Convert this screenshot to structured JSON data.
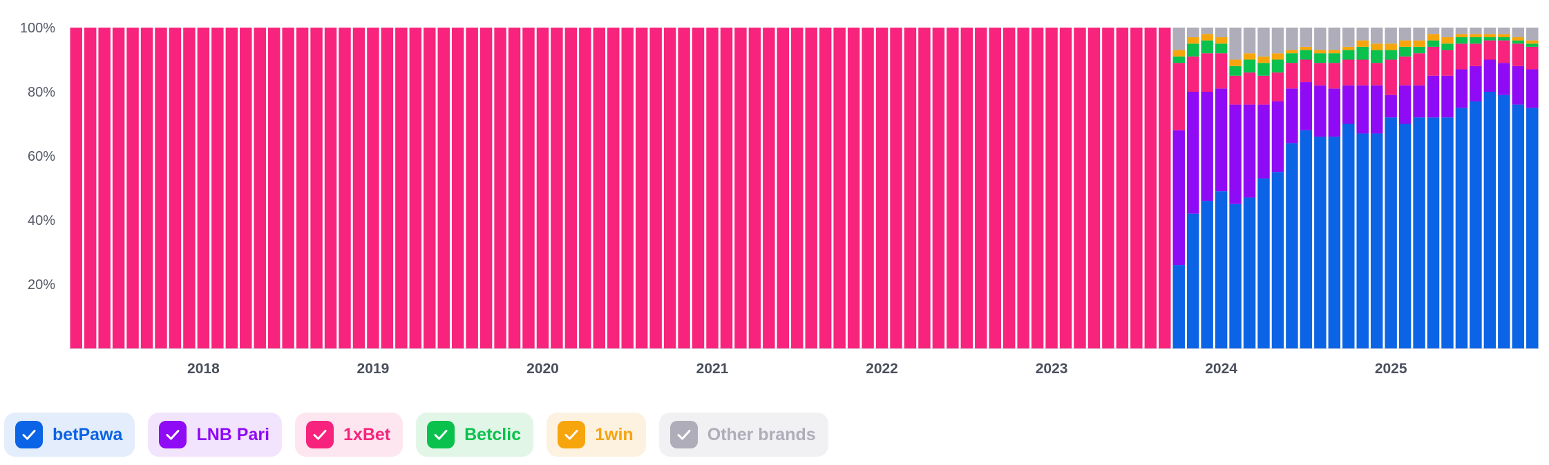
{
  "chart_data": {
    "type": "bar",
    "stacked": true,
    "normalized": true,
    "ylim": [
      0,
      100
    ],
    "yticks": [
      "20%",
      "40%",
      "60%",
      "80%",
      "100%"
    ],
    "ytick_values": [
      20,
      40,
      60,
      80,
      100
    ],
    "x_start": "2017-09",
    "x_end": "2025-05",
    "x_interval": "month",
    "year_labels": [
      "2018",
      "2019",
      "2020",
      "2021",
      "2022",
      "2023",
      "2024",
      "2025"
    ],
    "series": [
      {
        "name": "betPawa",
        "color": "#0b63e5",
        "values": [
          0,
          0,
          0,
          0,
          0,
          0,
          0,
          0,
          0,
          0,
          0,
          0,
          0,
          0,
          0,
          0,
          0,
          0,
          0,
          0,
          0,
          0,
          0,
          0,
          0,
          0,
          0,
          0,
          0,
          0,
          0,
          0,
          0,
          0,
          0,
          0,
          0,
          0,
          0,
          0,
          0,
          0,
          0,
          0,
          0,
          0,
          0,
          0,
          0,
          0,
          0,
          0,
          0,
          0,
          0,
          0,
          0,
          0,
          0,
          0,
          0,
          0,
          0,
          0,
          0,
          0,
          0,
          0,
          0,
          0,
          0,
          0,
          0,
          0,
          0,
          0,
          0,
          0,
          26,
          42,
          46,
          49,
          45,
          47,
          53,
          55,
          64,
          68,
          66,
          66,
          70,
          67,
          67,
          72,
          70,
          72,
          72,
          72,
          75,
          77,
          80,
          79,
          76,
          75
        ]
      },
      {
        "name": "LNB Pari",
        "color": "#8f0af5",
        "values": [
          0,
          0,
          0,
          0,
          0,
          0,
          0,
          0,
          0,
          0,
          0,
          0,
          0,
          0,
          0,
          0,
          0,
          0,
          0,
          0,
          0,
          0,
          0,
          0,
          0,
          0,
          0,
          0,
          0,
          0,
          0,
          0,
          0,
          0,
          0,
          0,
          0,
          0,
          0,
          0,
          0,
          0,
          0,
          0,
          0,
          0,
          0,
          0,
          0,
          0,
          0,
          0,
          0,
          0,
          0,
          0,
          0,
          0,
          0,
          0,
          0,
          0,
          0,
          0,
          0,
          0,
          0,
          0,
          0,
          0,
          0,
          0,
          0,
          0,
          0,
          0,
          0,
          0,
          42,
          38,
          34,
          32,
          31,
          29,
          23,
          22,
          17,
          15,
          16,
          15,
          12,
          15,
          15,
          7,
          12,
          10,
          13,
          13,
          12,
          11,
          10,
          10,
          12,
          12
        ]
      },
      {
        "name": "1xBet",
        "color": "#f7237d",
        "values": [
          100,
          100,
          100,
          100,
          100,
          100,
          100,
          100,
          100,
          100,
          100,
          100,
          100,
          100,
          100,
          100,
          100,
          100,
          100,
          100,
          100,
          100,
          100,
          100,
          100,
          100,
          100,
          100,
          100,
          100,
          100,
          100,
          100,
          100,
          100,
          100,
          100,
          100,
          100,
          100,
          100,
          100,
          100,
          100,
          100,
          100,
          100,
          100,
          100,
          100,
          100,
          100,
          100,
          100,
          100,
          100,
          100,
          100,
          100,
          100,
          100,
          100,
          100,
          100,
          100,
          100,
          100,
          100,
          100,
          100,
          100,
          100,
          100,
          100,
          100,
          100,
          100,
          100,
          21,
          11,
          12,
          11,
          9,
          10,
          9,
          9,
          8,
          7,
          7,
          8,
          8,
          8,
          7,
          11,
          9,
          10,
          9,
          8,
          8,
          7,
          6,
          7,
          7,
          7
        ]
      },
      {
        "name": "Betclic",
        "color": "#0ac14d",
        "values": [
          0,
          0,
          0,
          0,
          0,
          0,
          0,
          0,
          0,
          0,
          0,
          0,
          0,
          0,
          0,
          0,
          0,
          0,
          0,
          0,
          0,
          0,
          0,
          0,
          0,
          0,
          0,
          0,
          0,
          0,
          0,
          0,
          0,
          0,
          0,
          0,
          0,
          0,
          0,
          0,
          0,
          0,
          0,
          0,
          0,
          0,
          0,
          0,
          0,
          0,
          0,
          0,
          0,
          0,
          0,
          0,
          0,
          0,
          0,
          0,
          0,
          0,
          0,
          0,
          0,
          0,
          0,
          0,
          0,
          0,
          0,
          0,
          0,
          0,
          0,
          0,
          0,
          0,
          2,
          4,
          4,
          3,
          3,
          4,
          4,
          4,
          3,
          3,
          3,
          3,
          3,
          4,
          4,
          3,
          3,
          2,
          2,
          2,
          2,
          2,
          1,
          1,
          1,
          1
        ]
      },
      {
        "name": "1win",
        "color": "#f7a50d",
        "values": [
          0,
          0,
          0,
          0,
          0,
          0,
          0,
          0,
          0,
          0,
          0,
          0,
          0,
          0,
          0,
          0,
          0,
          0,
          0,
          0,
          0,
          0,
          0,
          0,
          0,
          0,
          0,
          0,
          0,
          0,
          0,
          0,
          0,
          0,
          0,
          0,
          0,
          0,
          0,
          0,
          0,
          0,
          0,
          0,
          0,
          0,
          0,
          0,
          0,
          0,
          0,
          0,
          0,
          0,
          0,
          0,
          0,
          0,
          0,
          0,
          0,
          0,
          0,
          0,
          0,
          0,
          0,
          0,
          0,
          0,
          0,
          0,
          0,
          0,
          0,
          0,
          0,
          0,
          2,
          2,
          2,
          2,
          2,
          2,
          2,
          2,
          1,
          1,
          1,
          1,
          1,
          2,
          2,
          2,
          2,
          2,
          2,
          2,
          1,
          1,
          1,
          1,
          1,
          1
        ]
      },
      {
        "name": "Other brands",
        "color": "#aeadb9",
        "values": [
          0,
          0,
          0,
          0,
          0,
          0,
          0,
          0,
          0,
          0,
          0,
          0,
          0,
          0,
          0,
          0,
          0,
          0,
          0,
          0,
          0,
          0,
          0,
          0,
          0,
          0,
          0,
          0,
          0,
          0,
          0,
          0,
          0,
          0,
          0,
          0,
          0,
          0,
          0,
          0,
          0,
          0,
          0,
          0,
          0,
          0,
          0,
          0,
          0,
          0,
          0,
          0,
          0,
          0,
          0,
          0,
          0,
          0,
          0,
          0,
          0,
          0,
          0,
          0,
          0,
          0,
          0,
          0,
          0,
          0,
          0,
          0,
          0,
          0,
          0,
          0,
          0,
          0,
          7,
          3,
          2,
          3,
          10,
          8,
          9,
          8,
          7,
          6,
          7,
          7,
          6,
          4,
          5,
          5,
          4,
          4,
          2,
          3,
          2,
          2,
          2,
          2,
          3,
          4
        ]
      }
    ]
  },
  "legend": [
    {
      "name": "betPawa",
      "color": "#0b63e5",
      "bg": "#e3edfb",
      "checked": true
    },
    {
      "name": "LNB Pari",
      "color": "#8f0af5",
      "bg": "#f2e4fd",
      "checked": true
    },
    {
      "name": "1xBet",
      "color": "#f7237d",
      "bg": "#fde6ef",
      "checked": true
    },
    {
      "name": "Betclic",
      "color": "#0ac14d",
      "bg": "#e2f6e8",
      "checked": true
    },
    {
      "name": "1win",
      "color": "#f7a50d",
      "bg": "#fdf1e0",
      "checked": true
    },
    {
      "name": "Other brands",
      "color": "#aeadb9",
      "bg": "#f1f1f3",
      "checked": true
    }
  ],
  "colors": {
    "axis": "#d9dbe0",
    "tick_text": "#555a66",
    "background": "#ffffff"
  }
}
